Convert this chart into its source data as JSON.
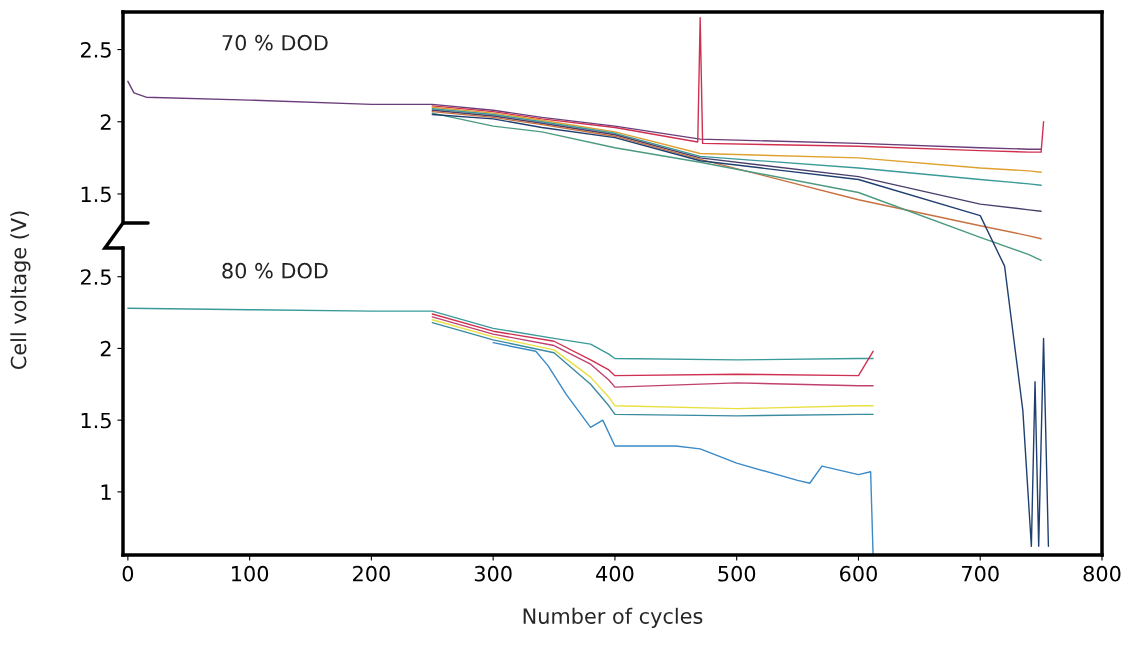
{
  "chart_data": [
    {
      "type": "line",
      "ylabel": "Cell voltage (V)",
      "annotations": [
        "70 % DOD"
      ],
      "xlim": [
        -4,
        800
      ],
      "ylim": [
        -1.0,
        2.76
      ],
      "yticks": [
        1.5,
        2,
        2.5
      ],
      "x": [
        250,
        300,
        340,
        400,
        470,
        600,
        700,
        740,
        750
      ],
      "series": [
        {
          "color": "#6a3d7a",
          "x": [
            0,
            5,
            15,
            100,
            200,
            250,
            300,
            340,
            400,
            470,
            600,
            700,
            740,
            750
          ],
          "values": [
            2.28,
            2.2,
            2.17,
            2.15,
            2.12,
            2.12,
            2.08,
            2.03,
            1.97,
            1.88,
            1.85,
            1.82,
            1.81,
            1.81
          ]
        },
        {
          "color": "#d03050",
          "x": [
            250,
            300,
            340,
            400,
            468,
            470,
            472,
            600,
            700,
            740,
            750,
            752
          ],
          "values": [
            2.11,
            2.07,
            2.02,
            1.96,
            1.86,
            2.72,
            1.85,
            1.83,
            1.8,
            1.79,
            1.79,
            2.0
          ]
        },
        {
          "color": "#e0a030",
          "values": [
            2.1,
            2.06,
            2.01,
            1.93,
            1.78,
            1.75,
            1.68,
            1.66,
            1.65
          ]
        },
        {
          "color": "#3a9a9a",
          "values": [
            2.09,
            2.05,
            2.0,
            1.92,
            1.76,
            1.68,
            1.6,
            1.57,
            1.56
          ]
        },
        {
          "color": "#4a3f6b",
          "values": [
            2.08,
            2.04,
            1.99,
            1.91,
            1.75,
            1.62,
            1.43,
            1.39,
            1.38
          ]
        },
        {
          "color": "#c87040",
          "values": [
            2.07,
            2.03,
            1.98,
            1.9,
            1.74,
            1.46,
            1.28,
            1.21,
            1.19
          ]
        },
        {
          "color": "#4a9a80",
          "values": [
            2.06,
            1.97,
            1.93,
            1.82,
            1.72,
            1.51,
            1.2,
            1.08,
            1.04
          ]
        },
        {
          "color": "#1f3f6f",
          "x": [
            250,
            300,
            340,
            400,
            470,
            600,
            700,
            720,
            735,
            742,
            745,
            748,
            752,
            756
          ],
          "values": [
            2.05,
            2.02,
            1.96,
            1.89,
            1.73,
            1.6,
            1.35,
            1.0,
            0.0,
            -0.94,
            0.2,
            -0.94,
            0.5,
            -0.94
          ]
        }
      ]
    },
    {
      "type": "line",
      "xlabel": "Number of cycles",
      "annotations": [
        "80 % DOD"
      ],
      "xlim": [
        -4,
        800
      ],
      "xticks": [
        0,
        100,
        200,
        300,
        400,
        500,
        600,
        700,
        800
      ],
      "ylim": [
        0.56,
        2.7
      ],
      "yticks": [
        1,
        1.5,
        2,
        2.5
      ],
      "x": [
        250,
        300,
        350,
        380,
        395,
        400,
        500,
        600,
        612
      ],
      "series": [
        {
          "color": "#3a9a9a",
          "x": [
            0,
            100,
            200,
            250,
            300,
            350,
            380,
            395,
            400,
            500,
            600,
            612
          ],
          "values": [
            2.28,
            2.27,
            2.26,
            2.26,
            2.14,
            2.07,
            2.03,
            1.96,
            1.93,
            1.92,
            1.93,
            1.93
          ]
        },
        {
          "color": "#d03050",
          "values": [
            2.24,
            2.12,
            2.05,
            1.92,
            1.85,
            1.81,
            1.82,
            1.81,
            1.98
          ]
        },
        {
          "color": "#c04070",
          "values": [
            2.22,
            2.1,
            2.02,
            1.89,
            1.78,
            1.73,
            1.76,
            1.74,
            1.74
          ]
        },
        {
          "color": "#e8e040",
          "values": [
            2.2,
            2.08,
            1.99,
            1.8,
            1.66,
            1.6,
            1.58,
            1.6,
            1.6
          ]
        },
        {
          "color": "#3a8aa0",
          "values": [
            2.18,
            2.06,
            1.97,
            1.75,
            1.6,
            1.54,
            1.53,
            1.54,
            1.54
          ]
        },
        {
          "color": "#3a8ac8",
          "x": [
            300,
            335,
            345,
            360,
            380,
            390,
            400,
            450,
            470,
            500,
            550,
            560,
            570,
            600,
            610,
            612
          ],
          "values": [
            2.04,
            1.98,
            1.88,
            1.68,
            1.45,
            1.5,
            1.32,
            1.32,
            1.3,
            1.2,
            1.08,
            1.06,
            1.18,
            1.12,
            1.14,
            0.56
          ]
        }
      ]
    }
  ]
}
